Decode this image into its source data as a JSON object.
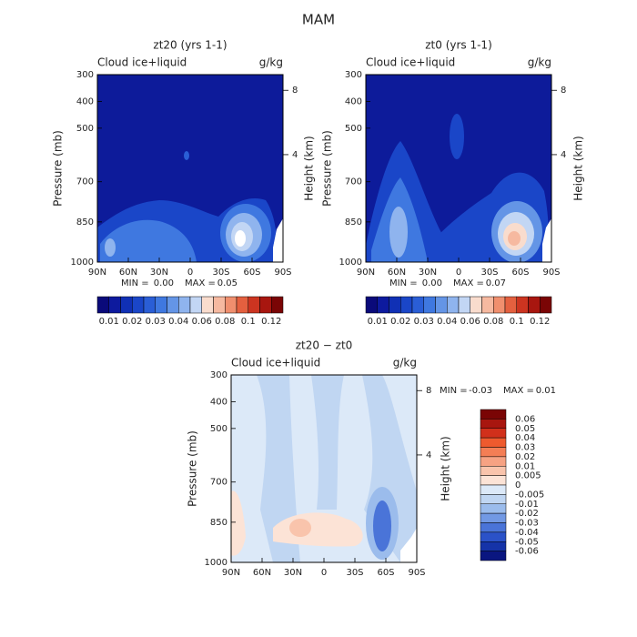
{
  "suptitle": "MAM",
  "chart_data": [
    {
      "type": "contour",
      "title": "zt20 (yrs 1-1)",
      "subtitle": "Cloud ice+liquid",
      "units": "g/kg",
      "ylabel": "Pressure (mb)",
      "y2label": "Height (km)",
      "xlim": [
        90,
        -90
      ],
      "xticks": [
        {
          "value": 90,
          "label": "90N"
        },
        {
          "value": 60,
          "label": "60N"
        },
        {
          "value": 30,
          "label": "30N"
        },
        0,
        {
          "value": -30,
          "label": "30S"
        },
        {
          "value": -60,
          "label": "60S"
        },
        {
          "value": -90,
          "label": "90S"
        }
      ],
      "ylim": [
        1000,
        300
      ],
      "yticks": [
        300,
        400,
        500,
        700,
        850,
        1000
      ],
      "y2ticks": [
        4,
        8
      ],
      "min_label": "MIN =",
      "min": {
        "value": 0,
        "label": "0.00"
      },
      "max_label": "MAX =",
      "max": 0.05,
      "colorbar": {
        "orientation": "horizontal",
        "ticks": [
          0.01,
          0.02,
          0.03,
          0.04,
          0.06,
          0.08,
          0.1,
          0.12
        ],
        "colors": [
          "#0a0a7a",
          "#0d1a9e",
          "#1030b5",
          "#1a46c8",
          "#2a5ed6",
          "#3f78e0",
          "#6495e6",
          "#8fb4ee",
          "#c2d6f4",
          "#f9dccd",
          "#f6b9a0",
          "#f08f6e",
          "#e4603f",
          "#cc3420",
          "#a8160f",
          "#7a0505"
        ]
      }
    },
    {
      "type": "contour",
      "title": "zt0 (yrs 1-1)",
      "subtitle": "Cloud ice+liquid",
      "units": "g/kg",
      "ylabel": "Pressure (mb)",
      "y2label": "Height (km)",
      "xlim": [
        90,
        -90
      ],
      "xticks": [
        {
          "value": 90,
          "label": "90N"
        },
        {
          "value": 60,
          "label": "60N"
        },
        {
          "value": 30,
          "label": "30N"
        },
        0,
        {
          "value": -30,
          "label": "30S"
        },
        {
          "value": -60,
          "label": "60S"
        },
        {
          "value": -90,
          "label": "90S"
        }
      ],
      "ylim": [
        1000,
        300
      ],
      "yticks": [
        300,
        400,
        500,
        700,
        850,
        1000
      ],
      "y2ticks": [
        4,
        8
      ],
      "min_label": "MIN =",
      "min": {
        "value": 0,
        "label": "0.00"
      },
      "max_label": "MAX =",
      "max": 0.07,
      "colorbar": {
        "orientation": "horizontal",
        "ticks": [
          0.01,
          0.02,
          0.03,
          0.04,
          0.06,
          0.08,
          0.1,
          0.12
        ],
        "colors": [
          "#0a0a7a",
          "#0d1a9e",
          "#1030b5",
          "#1a46c8",
          "#2a5ed6",
          "#3f78e0",
          "#6495e6",
          "#8fb4ee",
          "#c2d6f4",
          "#f9dccd",
          "#f6b9a0",
          "#f08f6e",
          "#e4603f",
          "#cc3420",
          "#a8160f",
          "#7a0505"
        ]
      }
    },
    {
      "type": "contour",
      "title": "zt20 − zt0",
      "subtitle": "Cloud ice+liquid",
      "units": "g/kg",
      "ylabel": "Pressure (mb)",
      "y2label": "Height (km)",
      "xlim": [
        90,
        -90
      ],
      "xticks": [
        {
          "value": 90,
          "label": "90N"
        },
        {
          "value": 60,
          "label": "60N"
        },
        {
          "value": 30,
          "label": "30N"
        },
        0,
        {
          "value": -30,
          "label": "30S"
        },
        {
          "value": -60,
          "label": "60S"
        },
        {
          "value": -90,
          "label": "90S"
        }
      ],
      "ylim": [
        1000,
        300
      ],
      "yticks": [
        300,
        400,
        500,
        700,
        850,
        1000
      ],
      "y2ticks": [
        4,
        8
      ],
      "min_label": "MIN =",
      "min": -0.03,
      "max_label": "MAX =",
      "max": 0.01,
      "colorbar": {
        "orientation": "vertical",
        "ticks": [
          0.06,
          0.05,
          0.04,
          0.03,
          0.02,
          0.01,
          0.005,
          0,
          -0.005,
          -0.01,
          -0.02,
          -0.03,
          -0.04,
          -0.05,
          -0.06
        ],
        "colors": [
          "#7a0505",
          "#a8160f",
          "#d1301b",
          "#ee5a2e",
          "#f47e55",
          "#f6a283",
          "#f9c4ac",
          "#fce3d6",
          "#dce9f8",
          "#c0d6f2",
          "#9bbcec",
          "#7299e4",
          "#4a74d8",
          "#2b52c8",
          "#1533a8",
          "#0a1680"
        ]
      }
    }
  ]
}
